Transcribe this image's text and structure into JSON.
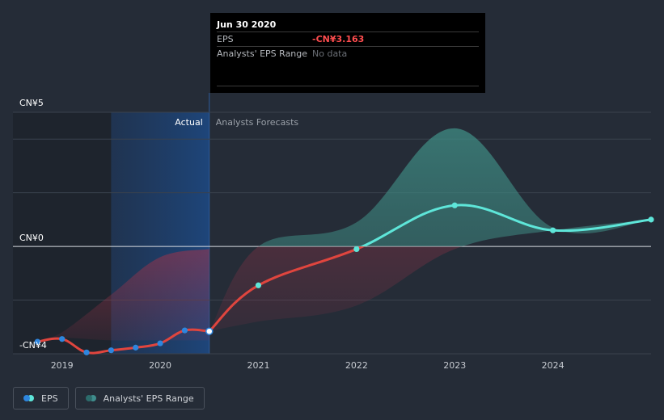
{
  "tooltip": {
    "date": "Jun 30 2020",
    "rows": [
      {
        "label": "EPS",
        "value": "-CN¥3.163"
      },
      {
        "label": "Analysts' EPS Range",
        "value": "No data"
      }
    ]
  },
  "regions": {
    "actual": "Actual",
    "forecast": "Analysts Forecasts"
  },
  "legend": [
    {
      "label": "EPS",
      "colors": [
        "#2e86de",
        "#5ee6d9"
      ]
    },
    {
      "label": "Analysts' EPS Range",
      "colors": [
        "#2c6b6b",
        "#3f8c8c"
      ]
    }
  ],
  "colors": {
    "background": "#252c37",
    "eps_actual": "#e0453e",
    "eps_forecast": "#5ee6d9",
    "actual_point": "#2e86de",
    "range_negative": "#a1334a",
    "range_positive": "#3f8c84",
    "highlight_band": "#1b3a66",
    "zero_line": "#d9dde3"
  },
  "chart_data": {
    "type": "line",
    "y_unit": "CN¥",
    "ylim": [
      -4,
      5
    ],
    "y_ticks": [
      {
        "value": 5,
        "label": "CN¥5"
      },
      {
        "value": 0,
        "label": "CN¥0"
      },
      {
        "value": -4,
        "label": "-CN¥4"
      }
    ],
    "x_ticks": [
      {
        "value": 2019,
        "label": "2019"
      },
      {
        "value": 2020,
        "label": "2020"
      },
      {
        "value": 2021,
        "label": "2021"
      },
      {
        "value": 2022,
        "label": "2022"
      },
      {
        "value": 2023,
        "label": "2023"
      },
      {
        "value": 2024,
        "label": "2024"
      }
    ],
    "xlim": [
      2018.5,
      2025.0
    ],
    "actual_end": 2020.5,
    "highlight_band": [
      2019.5,
      2020.5
    ],
    "shadow_band": [
      2018.5,
      2019.5
    ],
    "gridlines": [
      5,
      4,
      2,
      0,
      -2,
      -4
    ],
    "grid": true,
    "series": [
      {
        "name": "EPS",
        "kind": "actual",
        "points": [
          {
            "x": 2018.75,
            "y": -3.55
          },
          {
            "x": 2019.0,
            "y": -3.45
          },
          {
            "x": 2019.25,
            "y": -3.95
          },
          {
            "x": 2019.5,
            "y": -3.87
          },
          {
            "x": 2019.75,
            "y": -3.77
          },
          {
            "x": 2020.0,
            "y": -3.61
          },
          {
            "x": 2020.25,
            "y": -3.13
          },
          {
            "x": 2020.5,
            "y": -3.163
          }
        ]
      },
      {
        "name": "EPS",
        "kind": "forecast",
        "points": [
          {
            "x": 2020.5,
            "y": -3.163
          },
          {
            "x": 2021.0,
            "y": -1.45
          },
          {
            "x": 2022.0,
            "y": -0.1
          },
          {
            "x": 2023.0,
            "y": 1.53
          },
          {
            "x": 2024.0,
            "y": 0.6
          },
          {
            "x": 2025.0,
            "y": 1.0
          }
        ]
      }
    ],
    "past_range": {
      "x": [
        2018.75,
        2019.0,
        2019.5,
        2020.0,
        2020.5
      ],
      "low": [
        -3.5,
        -3.4,
        -3.5,
        -3.5,
        -3.5
      ],
      "high": [
        -3.5,
        -3.2,
        -1.8,
        -0.4,
        -0.1
      ]
    },
    "forecast_range": {
      "x": [
        2020.5,
        2021.0,
        2022.0,
        2023.0,
        2024.0,
        2025.0
      ],
      "low": [
        -3.163,
        -2.8,
        -2.2,
        -0.1,
        0.6,
        1.0
      ],
      "high": [
        -3.163,
        0.0,
        0.9,
        4.4,
        0.7,
        1.0
      ]
    }
  }
}
